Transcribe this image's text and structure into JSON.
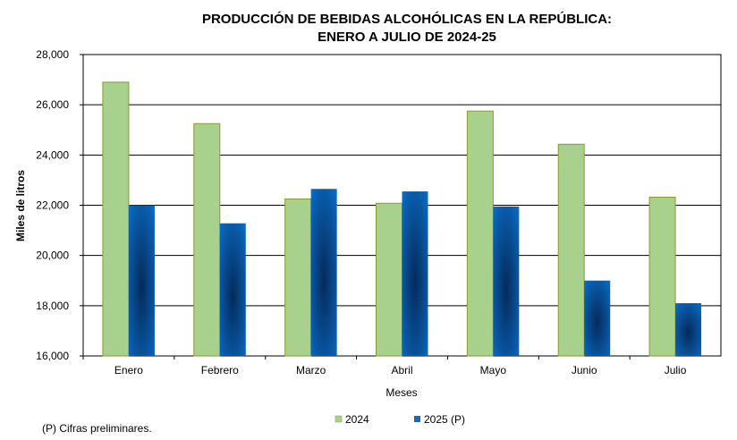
{
  "colors": {
    "series_2024": "#a9d18e",
    "series_2024_border": "#8a9a2a",
    "series_2025": "#0a6ec8",
    "series_2025_dark": "#052a5a",
    "grid": "#000000"
  },
  "chart_data": {
    "type": "bar",
    "title_line1": "PRODUCCIÓN DE BEBIDAS ALCOHÓLICAS EN LA REPÚBLICA:",
    "title_line2": "ENERO A JULIO DE 2024-25",
    "xlabel": "Meses",
    "ylabel": "Miles de litros",
    "ylim": [
      16000,
      28000
    ],
    "yticks": [
      16000,
      18000,
      20000,
      22000,
      24000,
      26000,
      28000
    ],
    "ytick_labels": [
      "16,000",
      "18,000",
      "20,000",
      "22,000",
      "24,000",
      "26,000",
      "28,000"
    ],
    "categories": [
      "Enero",
      "Febrero",
      "Marzo",
      "Abril",
      "Mayo",
      "Junio",
      "Julio"
    ],
    "series": [
      {
        "name": "2024",
        "values": [
          26900,
          25250,
          22250,
          22080,
          25750,
          24430,
          22320
        ]
      },
      {
        "name": "2025 (P)",
        "values": [
          22000,
          21280,
          22650,
          22550,
          21950,
          19000,
          18100
        ]
      }
    ],
    "legend_position": "bottom-center",
    "grid": true,
    "note": "(P) Cifras  preliminares."
  }
}
